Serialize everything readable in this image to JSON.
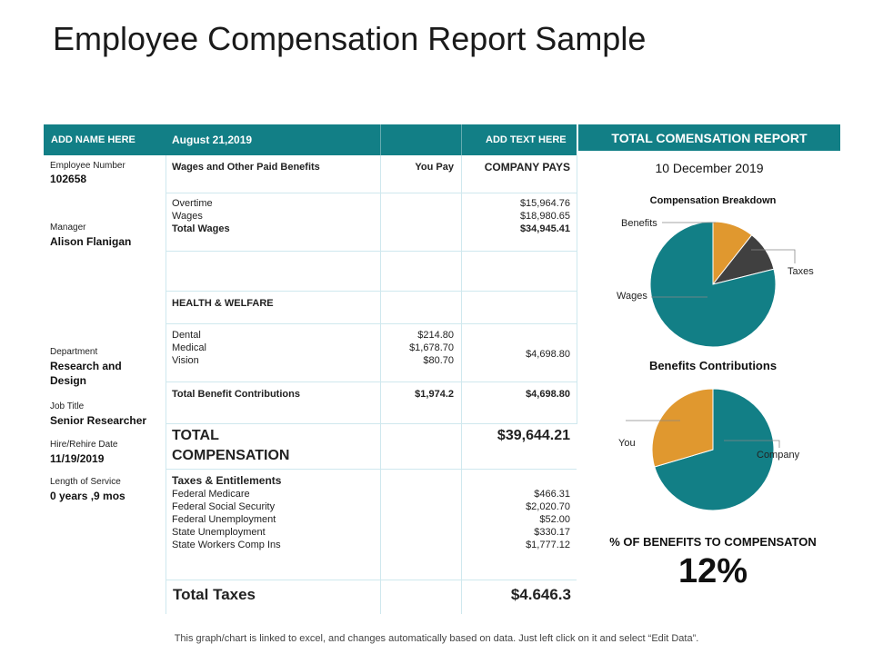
{
  "title": "Employee Compensation Report Sample",
  "colors": {
    "accent": "#127f86",
    "orange": "#e0982f",
    "dark": "#404040",
    "grid": "#cfe8ee"
  },
  "header": {
    "name": "ADD NAME HERE",
    "date": "August 21,2019",
    "add_text": "ADD TEXT HERE",
    "report_title": "TOTAL COMENSATION REPORT"
  },
  "employee": {
    "number_label": "Employee Number",
    "number": "102658",
    "manager_label": "Manager",
    "manager": "Alison Flanigan",
    "department_label": "Department",
    "department": [
      "Research and",
      "Design"
    ],
    "job_title_label": "Job Title",
    "job_title": "Senior Researcher",
    "hire_label": "Hire/Rehire Date",
    "hire_date": "11/19/2019",
    "service_label": "Length of Service",
    "service": "0 years ,9 mos"
  },
  "table": {
    "col_heading": "Wages and Other Paid Benefits",
    "you_pay_heading": "You Pay",
    "company_pays_heading": "COMPANY PAYS",
    "wages_labels": [
      "Overtime",
      "Wages"
    ],
    "wages_values": [
      "$15,964.76",
      "$18,980.65"
    ],
    "total_wages_label": "Total Wages",
    "total_wages_value": "$34,945.41",
    "health_heading": "HEALTH  & WELFARE",
    "health_labels": [
      "Dental",
      "Medical",
      "Vision"
    ],
    "health_you_pay": [
      "$214.80",
      "$1,678.70",
      "$80.70"
    ],
    "health_company": "$4,698.80",
    "total_benefit_label": "Total Benefit Contributions",
    "total_benefit_you": "$1,974.2",
    "total_benefit_company": "$4,698.80",
    "total_comp_label": [
      "TOTAL",
      "COMPENSATION"
    ],
    "total_comp_value": "$39,644.21",
    "taxes_heading": "Taxes & Entitlements",
    "taxes_labels": [
      "Federal Medicare",
      "Federal Social Security",
      "Federal Unemployment",
      "State Unemployment",
      "State Workers Comp Ins"
    ],
    "taxes_values": [
      "$466.31",
      "$2,020.70",
      "$52.00",
      "$330.17",
      "$1,777.12"
    ],
    "total_taxes_label": "Total Taxes",
    "total_taxes_value": "$4.646.3"
  },
  "right": {
    "report_date": "10 December 2019",
    "pct_label": "% OF BENEFITS TO COMPENSATON",
    "pct_value": "12%"
  },
  "chart_data": [
    {
      "type": "pie",
      "title": "Compensation Breakdown",
      "categories": [
        "Benefits",
        "Taxes",
        "Wages"
      ],
      "values": [
        4698.8,
        4646.3,
        34945.41
      ],
      "colors": [
        "#e0982f",
        "#404040",
        "#127f86"
      ]
    },
    {
      "type": "pie",
      "title": "Benefits Contributions",
      "categories": [
        "Company",
        "You"
      ],
      "values": [
        4698.8,
        1974.2
      ],
      "colors": [
        "#127f86",
        "#e0982f"
      ]
    }
  ],
  "footer": "This graph/chart is linked to excel, and changes automatically based on data. Just left click on it and select “Edit Data”."
}
